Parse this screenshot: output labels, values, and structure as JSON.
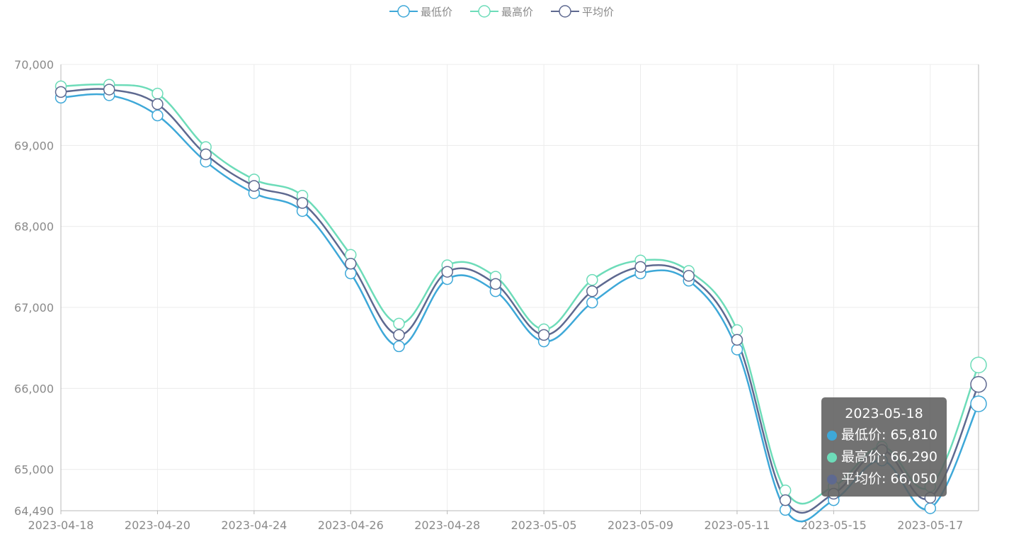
{
  "colors": {
    "min": "#3ea8d8",
    "max": "#6ddcb9",
    "avg": "#5e6990",
    "grid": "#ececec",
    "axis": "#b8b8b8",
    "label": "#8a8a8a"
  },
  "legend": [
    {
      "label": "最低价",
      "color": "#3ea8d8"
    },
    {
      "label": "最高价",
      "color": "#6ddcb9"
    },
    {
      "label": "平均价",
      "color": "#5e6990"
    }
  ],
  "tooltip": {
    "title": "2023-05-18",
    "rows": [
      {
        "text": "最低价: 65,810",
        "color": "#3ea8d8"
      },
      {
        "text": "最高价: 66,290",
        "color": "#6ddcb9"
      },
      {
        "text": "平均价: 66,050",
        "color": "#5e6990"
      }
    ]
  },
  "chart_data": {
    "type": "line",
    "title": "",
    "xlabel": "",
    "ylabel": "",
    "smooth": true,
    "grid": true,
    "legend_position": "top-center",
    "ylim": [
      64490,
      70000
    ],
    "y_ticks": [
      {
        "value": 64490,
        "label": "64,490"
      },
      {
        "value": 65000,
        "label": "65,000"
      },
      {
        "value": 66000,
        "label": "66,000"
      },
      {
        "value": 67000,
        "label": "67,000"
      },
      {
        "value": 68000,
        "label": "68,000"
      },
      {
        "value": 69000,
        "label": "69,000"
      },
      {
        "value": 70000,
        "label": "70,000"
      }
    ],
    "x_tick_labels": [
      "2023-04-18",
      "2023-04-20",
      "2023-04-24",
      "2023-04-26",
      "2023-04-28",
      "2023-05-05",
      "2023-05-09",
      "2023-05-11",
      "2023-05-15",
      "2023-05-17"
    ],
    "categories": [
      "2023-04-18",
      "2023-04-19",
      "2023-04-20",
      "2023-04-21",
      "2023-04-24",
      "2023-04-25",
      "2023-04-26",
      "2023-04-27",
      "2023-04-28",
      "2023-05-04",
      "2023-05-05",
      "2023-05-08",
      "2023-05-09",
      "2023-05-10",
      "2023-05-11",
      "2023-05-12",
      "2023-05-15",
      "2023-05-16",
      "2023-05-17",
      "2023-05-18"
    ],
    "series": [
      {
        "name": "最低价",
        "values": [
          69590,
          69620,
          69370,
          68800,
          68410,
          68190,
          67420,
          66520,
          67350,
          67200,
          66580,
          67060,
          67420,
          67330,
          66480,
          64500,
          64620,
          65110,
          64520,
          65810
        ]
      },
      {
        "name": "最高价",
        "values": [
          69730,
          69750,
          69640,
          68980,
          68580,
          68380,
          67650,
          66800,
          67520,
          67380,
          66730,
          67340,
          67580,
          67450,
          66720,
          64740,
          64790,
          65280,
          64790,
          66290
        ]
      },
      {
        "name": "平均价",
        "values": [
          69660,
          69690,
          69510,
          68890,
          68500,
          68290,
          67540,
          66660,
          67440,
          67290,
          66660,
          67200,
          67500,
          67390,
          66600,
          64620,
          64700,
          65240,
          64650,
          66050
        ]
      }
    ],
    "highlighted_category": "2023-05-18"
  }
}
